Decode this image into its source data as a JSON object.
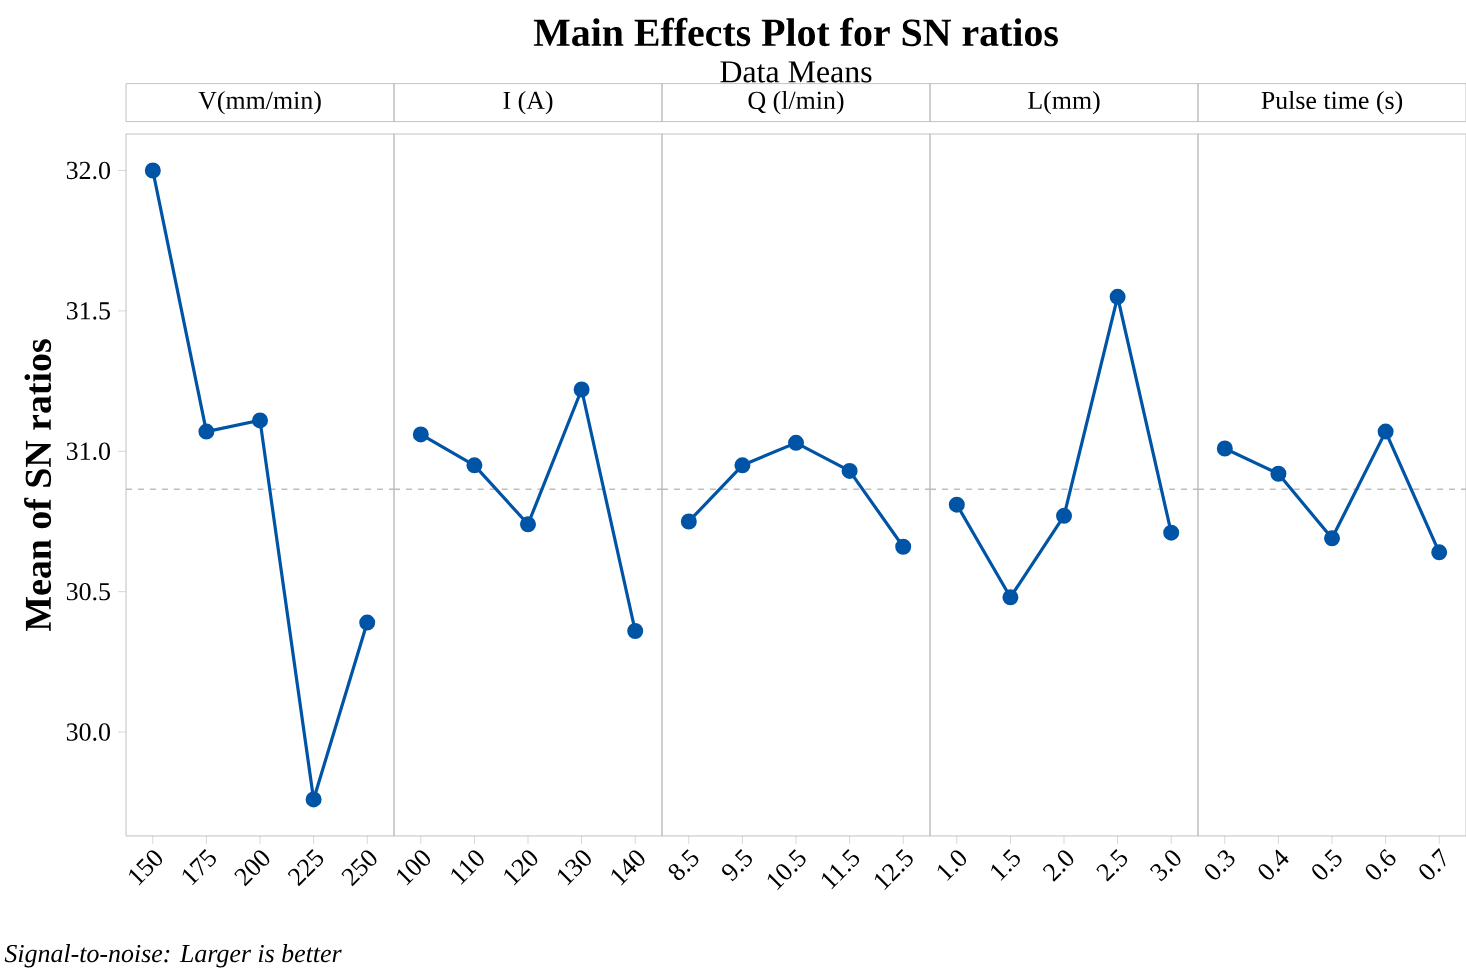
{
  "chart_data": [
    {
      "type": "line",
      "xlabel": "V(mm/min)",
      "ylabel": "Mean of SN ratios",
      "annotations": [
        "Signal-to-noise: Larger is better"
      ],
      "categories": [
        "150",
        "175",
        "200",
        "225",
        "250"
      ],
      "values": [
        32.0,
        31.07,
        31.11,
        29.76,
        30.39
      ],
      "color": "#0054a6",
      "marker": "circle",
      "ylim": [
        29.63,
        32.13
      ],
      "yticks": [
        {
          "value": 30,
          "label": "30.0"
        },
        {
          "value": 30.5,
          "label": "30.5"
        },
        {
          "value": 31,
          "label": "31.0"
        },
        {
          "value": 31.5,
          "label": "31.5"
        },
        {
          "value": 32,
          "label": "32.0"
        }
      ],
      "ref_lines": [
        {
          "axis": "y",
          "value": 30.865,
          "color": "#bdbdbd",
          "line_style": "dashed"
        }
      ]
    },
    {
      "type": "line",
      "xlabel": "I (A)",
      "categories": [
        "100",
        "110",
        "120",
        "130",
        "140"
      ],
      "values": [
        31.06,
        30.95,
        30.74,
        31.22,
        30.36
      ],
      "color": "#0054a6",
      "marker": "circle",
      "ylim": [
        29.63,
        32.13
      ],
      "tick_labels": "x",
      "ref_lines": [
        {
          "axis": "y",
          "value": 30.865,
          "color": "#bdbdbd",
          "line_style": "dashed"
        }
      ]
    },
    {
      "type": "line",
      "title": "Main Effects Plot for SN ratios",
      "subtitle": "Data Means",
      "xlabel": "Q (l/min)",
      "categories": [
        "8.5",
        "9.5",
        "10.5",
        "11.5",
        "12.5"
      ],
      "values": [
        30.75,
        30.95,
        31.03,
        30.93,
        30.66
      ],
      "color": "#0054a6",
      "marker": "circle",
      "ylim": [
        29.63,
        32.13
      ],
      "tick_labels": "x",
      "ref_lines": [
        {
          "axis": "y",
          "value": 30.865,
          "color": "#bdbdbd",
          "line_style": "dashed"
        }
      ]
    },
    {
      "type": "line",
      "xlabel": "L(mm)",
      "categories": [
        "1.0",
        "1.5",
        "2.0",
        "2.5",
        "3.0"
      ],
      "values": [
        30.81,
        30.48,
        30.77,
        31.55,
        30.71
      ],
      "color": "#0054a6",
      "marker": "circle",
      "ylim": [
        29.63,
        32.13
      ],
      "tick_labels": "x",
      "ref_lines": [
        {
          "axis": "y",
          "value": 30.865,
          "color": "#bdbdbd",
          "line_style": "dashed"
        }
      ]
    },
    {
      "type": "line",
      "xlabel": "Pulse time (s)",
      "categories": [
        "0.3",
        "0.4",
        "0.5",
        "0.6",
        "0.7"
      ],
      "values": [
        31.01,
        30.92,
        30.69,
        31.07,
        30.64
      ],
      "color": "#0054a6",
      "marker": "circle",
      "ylim": [
        29.63,
        32.13
      ],
      "tick_labels": "x",
      "ref_lines": [
        {
          "axis": "y",
          "value": 30.865,
          "color": "#bdbdbd",
          "line_style": "dashed"
        }
      ]
    }
  ]
}
